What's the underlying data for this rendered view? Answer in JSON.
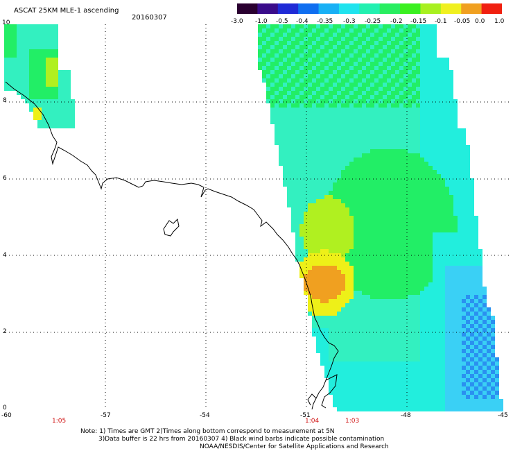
{
  "header": {
    "product_title": "ASCAT 25KM MLE-1 ascending",
    "date": "20160307"
  },
  "colorbar": {
    "tick_labels": [
      "-3.0",
      "-1.0",
      "-0.5",
      "-0.4",
      "-0.35",
      "-0.3",
      "-0.25",
      "-0.2",
      "-0.15",
      "-0.1",
      "-0.05",
      "0.0",
      "1.0"
    ],
    "colors": [
      "#2a0030",
      "#3a0c8a",
      "#1f2ad6",
      "#0f6ef0",
      "#18b0f5",
      "#1fe3ee",
      "#22f0b0",
      "#28ee60",
      "#3af020",
      "#a8f020",
      "#f0f020",
      "#f0a020",
      "#f02010"
    ]
  },
  "axes": {
    "lat_labels": [
      "10",
      "8",
      "6",
      "4",
      "2",
      "0"
    ],
    "lon_labels": [
      "-60",
      "-57",
      "-54",
      "-51",
      "-48",
      "-45"
    ]
  },
  "time_labels": {
    "t1": "1:05",
    "t2": "1:04",
    "t3": "1:03"
  },
  "notes": {
    "line1": "Note: 1) Times are GMT 2)Times along bottom correspond to measurement at 5N",
    "line2": "3)Data buffer is 22 hrs from 20160307 4) Black wind barbs indicate possible contamination",
    "line3": "NOAA/NESDIS/Center for Satellite Applications and Research"
  },
  "map_colors": {
    "cyan": "#22eedd",
    "aqua": "#33f0c0",
    "green": "#22ee66",
    "lime": "#44f028",
    "yellowgreen": "#b0f020",
    "yellow": "#eef018",
    "orange": "#f0a020",
    "redorange": "#f06010",
    "lightblue": "#3ad0f5",
    "blue": "#2a90f0"
  }
}
